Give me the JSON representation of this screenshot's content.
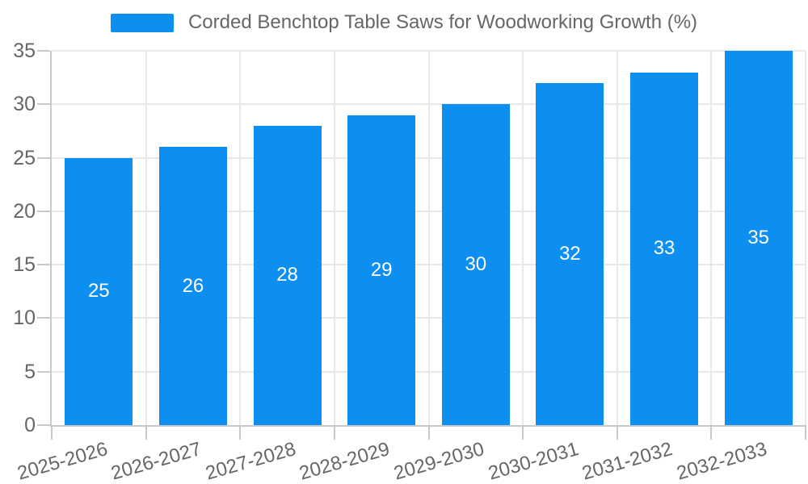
{
  "chart_data": {
    "type": "bar",
    "title": "Corded Benchtop Table Saws for Woodworking Growth (%)",
    "legend_position": "top",
    "grid": true,
    "categories": [
      "2025-2026",
      "2026-2027",
      "2027-2028",
      "2028-2029",
      "2029-2030",
      "2030-2031",
      "2031-2032",
      "2032-2033"
    ],
    "values": [
      25,
      26,
      28,
      29,
      30,
      32,
      33,
      35
    ],
    "bar_value_labels": [
      "25",
      "26",
      "28",
      "29",
      "30",
      "32",
      "33",
      "35"
    ],
    "xlabel": "",
    "ylabel": "",
    "ylim": [
      0,
      35
    ],
    "yticks": [
      0,
      5,
      10,
      15,
      20,
      25,
      30,
      35
    ],
    "x_label_rotation_deg": -16,
    "colors": {
      "bar": "#0d8ff2",
      "bar_label_text": "#ffffff",
      "axis_text": "#666666",
      "grid_line": "#e8e8e8",
      "axis_line": "#c9c9c9",
      "background": "#ffffff"
    }
  }
}
